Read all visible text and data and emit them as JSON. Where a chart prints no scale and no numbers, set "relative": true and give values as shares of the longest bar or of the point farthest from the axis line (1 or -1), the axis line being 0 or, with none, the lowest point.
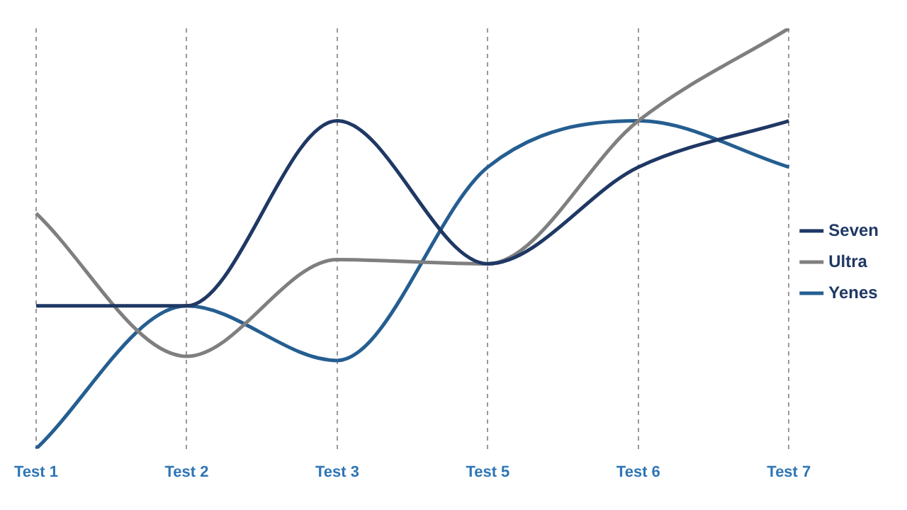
{
  "chart_data": {
    "type": "line",
    "relative": true,
    "categories": [
      "Test 1",
      "Test 2",
      "Test 3",
      "Test 5",
      "Test 6",
      "Test 7"
    ],
    "series": [
      {
        "name": "Seven",
        "color": "#1f3864",
        "values": [
          0.34,
          0.34,
          0.78,
          0.44,
          0.67,
          0.78
        ]
      },
      {
        "name": "Ultra",
        "color": "#7f7f7f",
        "values": [
          0.56,
          0.22,
          0.45,
          0.44,
          0.78,
          1.0
        ]
      },
      {
        "name": "Yenes",
        "color": "#255e91",
        "values": [
          0,
          0.34,
          0.21,
          0.67,
          0.78,
          0.67
        ]
      }
    ],
    "legend": "right",
    "grid": "x",
    "marker": "none",
    "line_style": "solid"
  }
}
